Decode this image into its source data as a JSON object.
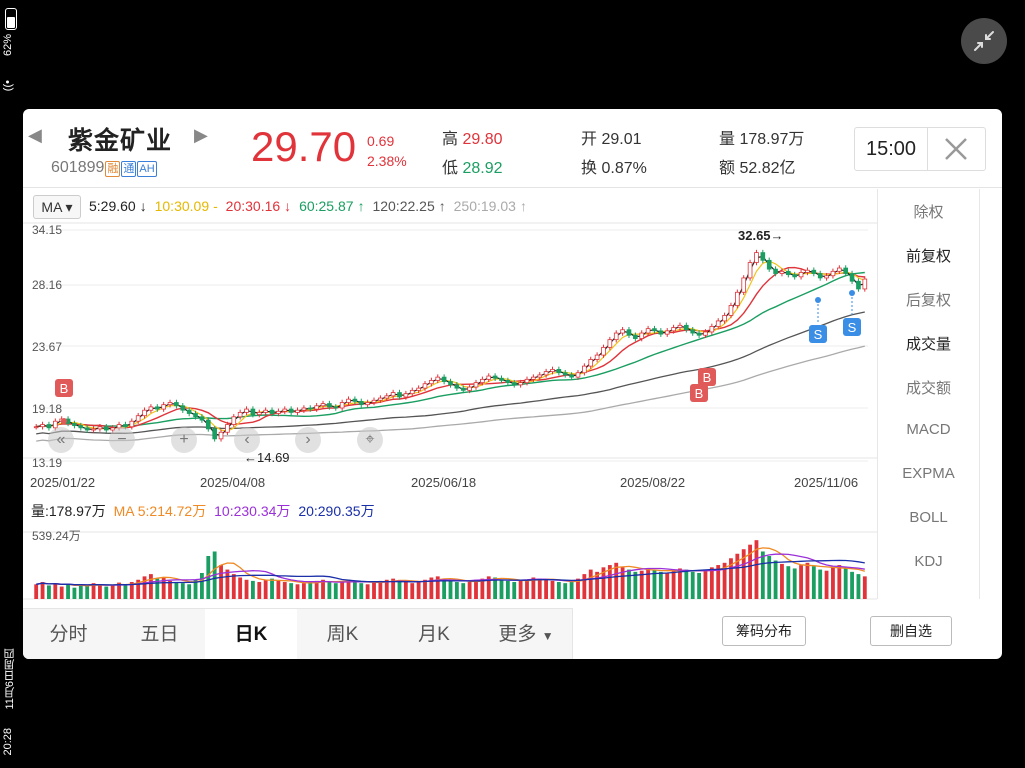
{
  "status_bar": {
    "time": "20:28",
    "date": "11月6日周四",
    "battery": "62%"
  },
  "stock": {
    "name": "紫金矿业",
    "code": "601899",
    "tags": [
      "融",
      "通",
      "AH"
    ],
    "price": "29.70",
    "change": "0.69",
    "change_pct": "2.38%",
    "high_label": "高",
    "high": "29.80",
    "low_label": "低",
    "low": "28.92",
    "open_label": "开",
    "open": "29.01",
    "turnover_label": "换",
    "turnover": "0.87%",
    "volume_label": "量",
    "volume": "178.97万",
    "amount_label": "额",
    "amount": "52.82亿",
    "time": "15:00"
  },
  "ma_bar": {
    "selector": "MA",
    "ma5": "5:29.60",
    "ma10": "10:30.09",
    "ma20": "20:30.16",
    "ma60": "60:25.87",
    "ma120": "120:22.25",
    "ma250": "250:19.03"
  },
  "price_axis": [
    "34.15",
    "28.16",
    "23.67",
    "19.18",
    "13.19"
  ],
  "date_axis": [
    "2025/01/22",
    "2025/04/08",
    "2025/06/18",
    "2025/08/22",
    "2025/11/06"
  ],
  "annotations": {
    "high": "32.65",
    "low": "14.69",
    "buy": "B",
    "sell": "S"
  },
  "volume_bar": {
    "vol": "量:178.97万",
    "ma5": "MA 5:214.72万",
    "ma10": "10:230.34万",
    "ma20": "20:290.35万",
    "axis_max": "539.24万"
  },
  "right_menu": [
    "除权",
    "前复权",
    "后复权",
    "成交量",
    "成交额",
    "MACD",
    "EXPMA",
    "BOLL",
    "KDJ"
  ],
  "right_menu_selected": [
    1,
    3
  ],
  "tabs": [
    "分时",
    "五日",
    "日K",
    "周K",
    "月K",
    "更多"
  ],
  "tab_selected": 2,
  "buttons": {
    "chip": "筹码分布",
    "remove": "删自选"
  },
  "colors": {
    "up": "#e0333a",
    "down": "#1a9e61",
    "ma5": "#222222",
    "ma10": "#f0c419",
    "ma20": "#e0333a",
    "ma60": "#1a9e61",
    "ma120": "#555555",
    "ma250": "#aaaaaa"
  },
  "chart_data": {
    "type": "candlestick",
    "price_ylim": [
      13.19,
      34.15
    ],
    "volume_ylim": [
      0,
      539.24
    ],
    "volume_unit": "万",
    "closes": [
      16.3,
      16.5,
      16.2,
      16.8,
      17.0,
      16.6,
      16.4,
      16.2,
      16.0,
      16.1,
      16.3,
      16.0,
      16.2,
      16.5,
      16.3,
      16.8,
      17.3,
      17.8,
      18.1,
      17.9,
      18.3,
      18.5,
      18.2,
      17.8,
      17.5,
      17.2,
      16.9,
      16.1,
      15.2,
      15.8,
      16.5,
      17.2,
      17.6,
      17.9,
      17.4,
      17.6,
      17.8,
      17.5,
      17.7,
      17.9,
      17.6,
      17.8,
      18.0,
      17.9,
      18.2,
      18.4,
      18.1,
      18.0,
      18.5,
      18.8,
      18.6,
      18.3,
      18.5,
      18.7,
      18.9,
      19.1,
      19.4,
      19.0,
      19.3,
      19.6,
      19.8,
      20.2,
      20.5,
      20.8,
      20.4,
      20.1,
      19.8,
      19.6,
      19.9,
      20.3,
      20.6,
      20.9,
      20.7,
      20.5,
      20.3,
      20.1,
      20.3,
      20.6,
      20.8,
      21.0,
      21.3,
      21.5,
      21.2,
      21.0,
      20.8,
      21.2,
      21.8,
      22.4,
      22.8,
      23.5,
      24.2,
      24.8,
      25.1,
      24.6,
      24.3,
      24.8,
      25.2,
      25.0,
      24.7,
      25.0,
      25.3,
      25.5,
      25.1,
      24.8,
      24.6,
      24.9,
      25.4,
      25.9,
      26.4,
      27.3,
      28.5,
      29.8,
      31.2,
      32.1,
      31.4,
      30.6,
      30.2,
      30.4,
      30.1,
      29.9,
      30.3,
      30.5,
      30.2,
      29.8,
      30.0,
      30.4,
      30.7,
      30.2,
      29.5,
      28.8,
      29.7
    ],
    "volumes": [
      130,
      150,
      120,
      140,
      110,
      135,
      100,
      125,
      115,
      140,
      130,
      110,
      120,
      145,
      130,
      150,
      170,
      200,
      220,
      180,
      190,
      160,
      150,
      140,
      130,
      170,
      230,
      380,
      420,
      300,
      260,
      220,
      190,
      170,
      160,
      150,
      170,
      180,
      160,
      150,
      140,
      130,
      140,
      150,
      160,
      170,
      150,
      140,
      160,
      170,
      150,
      140,
      130,
      150,
      160,
      170,
      180,
      160,
      150,
      140,
      150,
      170,
      190,
      200,
      180,
      160,
      150,
      140,
      150,
      170,
      180,
      200,
      190,
      170,
      160,
      150,
      160,
      170,
      190,
      180,
      170,
      160,
      150,
      140,
      150,
      180,
      220,
      260,
      240,
      280,
      300,
      320,
      280,
      260,
      240,
      250,
      270,
      260,
      240,
      230,
      250,
      270,
      260,
      240,
      230,
      250,
      280,
      300,
      320,
      360,
      400,
      440,
      480,
      520,
      420,
      380,
      340,
      310,
      290,
      270,
      300,
      320,
      290,
      260,
      250,
      280,
      300,
      270,
      240,
      220,
      200
    ]
  }
}
